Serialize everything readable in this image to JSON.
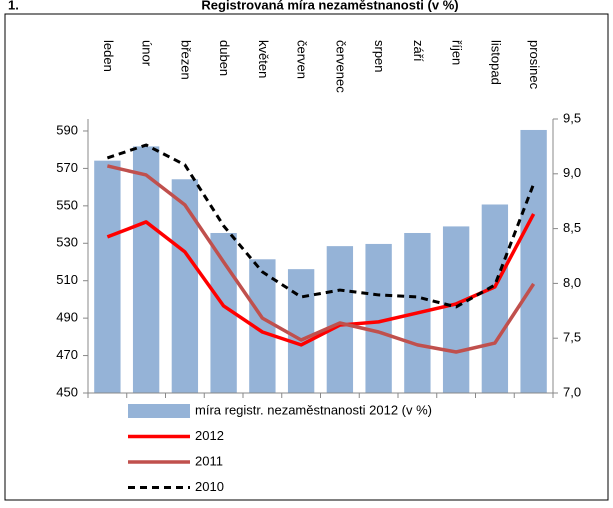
{
  "chart_data": {
    "type": "bar-line",
    "number": "1.",
    "title": "Registrovaná míra nezaměstnanosti (v %)",
    "categories": [
      "leden",
      "únor",
      "březen",
      "duben",
      "květen",
      "červen",
      "červenec",
      "srpen",
      "září",
      "říjen",
      "listopad",
      "prosinec"
    ],
    "series": [
      {
        "name": "míra registr. nezaměstnanosti 2012 (v %)",
        "type": "bar",
        "color": "#95b3d7",
        "axis": "y2",
        "values": [
          9.12,
          9.25,
          8.95,
          8.46,
          8.22,
          8.13,
          8.34,
          8.36,
          8.46,
          8.52,
          8.72,
          9.4
        ]
      },
      {
        "name": "2012",
        "type": "line",
        "color": "#ff0000",
        "dash": false,
        "values": [
          533.4,
          541.4,
          525.4,
          496.5,
          482.6,
          475.7,
          486.3,
          488,
          492.8,
          497.6,
          506.7,
          545.7
        ]
      },
      {
        "name": "2011",
        "type": "line",
        "color": "#c0504d",
        "dash": false,
        "values": [
          571.3,
          566.5,
          550.5,
          520,
          490,
          478.3,
          487.4,
          482.6,
          475.7,
          471.9,
          476.7,
          508.3
        ]
      },
      {
        "name": "2010",
        "type": "line",
        "color": "#000000",
        "dash": true,
        "values": [
          575.6,
          582.5,
          571.9,
          539.3,
          514.7,
          501.3,
          505,
          502.4,
          501.3,
          496,
          507.7,
          561.7
        ]
      }
    ],
    "ylim": [
      450,
      596.4
    ],
    "yticks": [
      450,
      470,
      490,
      510,
      530,
      550,
      570,
      590
    ],
    "y2lim": [
      7.0,
      9.5
    ],
    "y2ticks": [
      {
        "value": 7.0,
        "label": "7,0"
      },
      {
        "value": 7.5,
        "label": "7,5"
      },
      {
        "value": 8.0,
        "label": "8,0"
      },
      {
        "value": 8.5,
        "label": "8,5"
      },
      {
        "value": 9.0,
        "label": "9,0"
      },
      {
        "value": 9.5,
        "label": "9,5"
      }
    ],
    "grid": false
  }
}
